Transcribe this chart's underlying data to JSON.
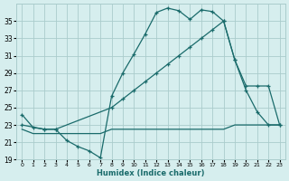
{
  "xlabel": "Humidex (Indice chaleur)",
  "bg_color": "#d6eeee",
  "grid_color": "#aacccc",
  "line_color": "#1a6b6b",
  "x_min": -0.5,
  "x_max": 23.5,
  "y_min": 19,
  "y_max": 37,
  "y_ticks": [
    19,
    21,
    23,
    25,
    27,
    29,
    31,
    33,
    35
  ],
  "x_ticks": [
    0,
    1,
    2,
    3,
    4,
    5,
    6,
    7,
    8,
    9,
    10,
    11,
    12,
    13,
    14,
    15,
    16,
    17,
    18,
    19,
    20,
    21,
    22,
    23
  ],
  "line1_x": [
    0,
    1,
    2,
    3,
    4,
    5,
    6,
    7,
    8,
    9,
    10,
    11,
    12,
    13,
    14,
    15,
    16,
    17,
    18,
    19,
    20,
    21,
    22,
    23
  ],
  "line1_y": [
    24.2,
    22.7,
    22.5,
    22.5,
    21.2,
    20.5,
    20.0,
    19.2,
    26.3,
    29.0,
    31.2,
    33.5,
    36.0,
    36.5,
    36.2,
    35.2,
    36.3,
    36.1,
    35.0,
    30.5,
    27.0,
    24.5,
    23.0,
    23.0
  ],
  "line2_x": [
    0,
    2,
    3,
    8,
    9,
    10,
    11,
    12,
    13,
    14,
    15,
    16,
    17,
    18,
    19,
    20,
    21,
    22,
    23
  ],
  "line2_y": [
    23.0,
    22.5,
    22.5,
    25.0,
    26.0,
    27.0,
    28.0,
    29.0,
    30.0,
    31.0,
    32.0,
    33.0,
    34.0,
    35.0,
    30.5,
    27.5,
    27.5,
    27.5,
    23.0
  ],
  "line3_x": [
    0,
    1,
    2,
    3,
    4,
    5,
    6,
    7,
    8,
    9,
    10,
    11,
    12,
    13,
    14,
    15,
    16,
    17,
    18,
    19,
    20,
    21,
    22,
    23
  ],
  "line3_y": [
    22.5,
    22.0,
    22.0,
    22.0,
    22.0,
    22.0,
    22.0,
    22.0,
    22.5,
    22.5,
    22.5,
    22.5,
    22.5,
    22.5,
    22.5,
    22.5,
    22.5,
    22.5,
    22.5,
    23.0,
    23.0,
    23.0,
    23.0,
    23.0
  ]
}
